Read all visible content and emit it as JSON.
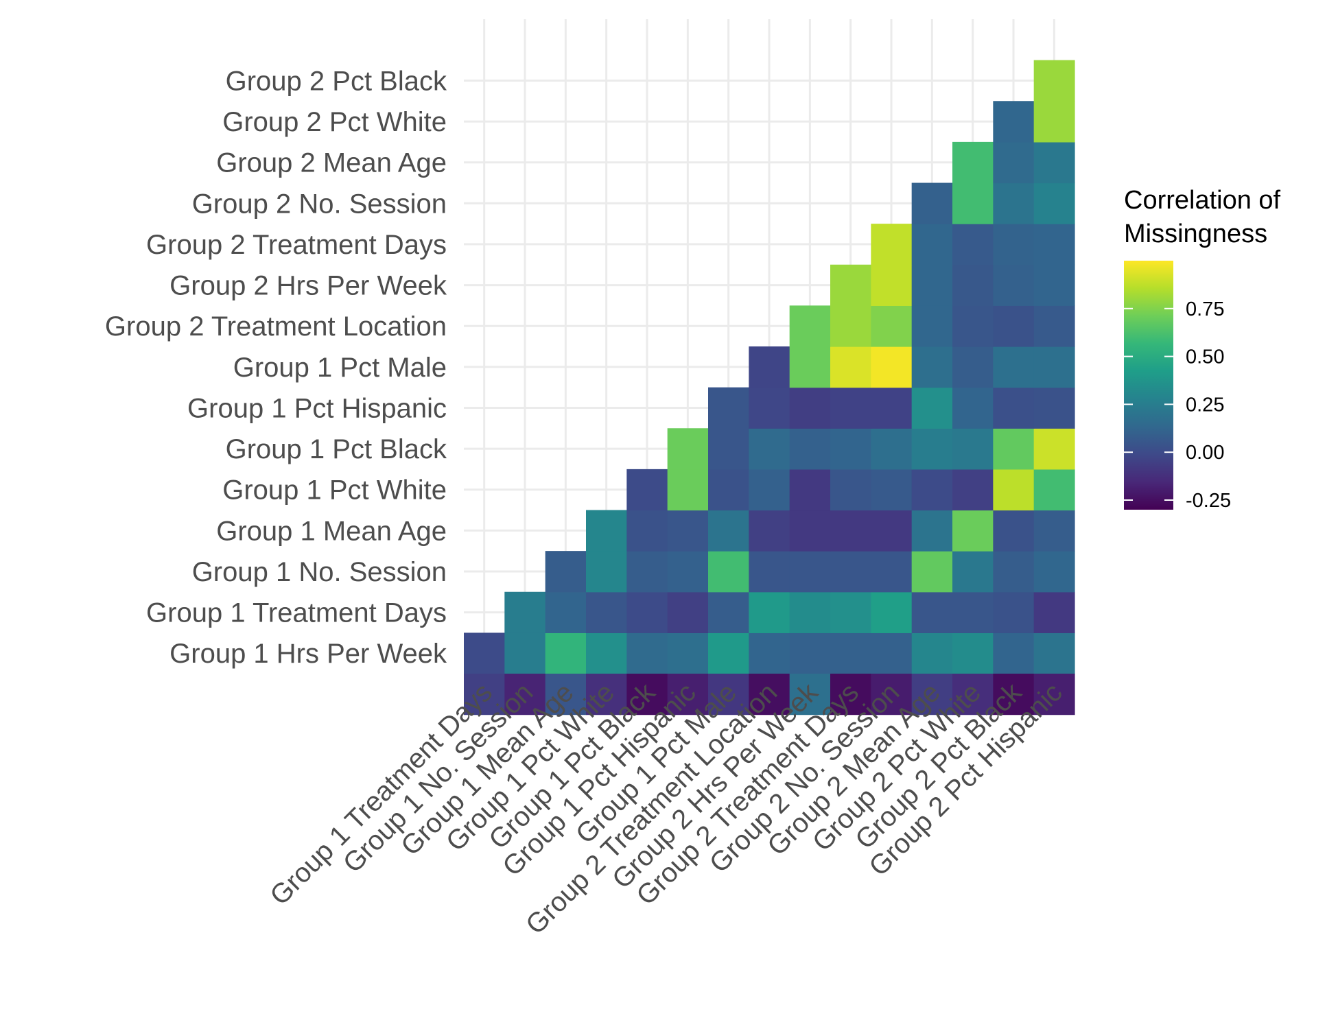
{
  "chart_data": {
    "type": "heatmap",
    "title": "",
    "xlabel": "",
    "ylabel": "",
    "x_categories": [
      "Group 1 Treatment Days",
      "Group 1 No. Session",
      "Group 1 Mean Age",
      "Group 1 Pct White",
      "Group 1 Pct Black",
      "Group 1 Pct Hispanic",
      "Group 1 Pct Male",
      "Group 2 Treatment Location",
      "Group 2 Hrs Per Week",
      "Group 2 Treatment Days",
      "Group 2 No. Session",
      "Group 2 Mean Age",
      "Group 2 Pct White",
      "Group 2 Pct Black",
      "Group 2 Pct Hispanic"
    ],
    "y_categories": [
      "Group 1 Hrs Per Week",
      "Group 1 Treatment Days",
      "Group 1 No. Session",
      "Group 1 Mean Age",
      "Group 1 Pct White",
      "Group 1 Pct Black",
      "Group 1 Pct Hispanic",
      "Group 1 Pct Male",
      "Group 2 Treatment Location",
      "Group 2 Hrs Per Week",
      "Group 2 Treatment Days",
      "Group 2 No. Session",
      "Group 2 Mean Age",
      "Group 2 Pct White",
      "Group 2 Pct Black"
    ],
    "bottom_row_values": [
      -0.05,
      -0.17,
      0.05,
      -0.12,
      -0.26,
      -0.19,
      -0.09,
      -0.25,
      0.18,
      -0.26,
      -0.2,
      -0.06,
      -0.13,
      -0.26,
      -0.19
    ],
    "values": [
      [
        0.0,
        0.25,
        0.55,
        0.35,
        0.15,
        0.17,
        0.4,
        0.12,
        0.1,
        0.1,
        0.1,
        0.3,
        0.33,
        0.12,
        0.2
      ],
      [
        null,
        0.25,
        0.12,
        0.05,
        0.0,
        -0.05,
        0.08,
        0.4,
        0.33,
        0.35,
        0.43,
        0.05,
        0.05,
        0.03,
        -0.08
      ],
      [
        null,
        null,
        0.08,
        0.3,
        0.08,
        0.1,
        0.6,
        0.05,
        0.05,
        0.05,
        0.05,
        0.68,
        0.22,
        0.08,
        0.13
      ],
      [
        null,
        null,
        null,
        0.3,
        0.03,
        0.05,
        0.2,
        -0.05,
        -0.08,
        -0.08,
        -0.08,
        0.2,
        0.7,
        0.03,
        0.08
      ],
      [
        null,
        null,
        null,
        null,
        0.0,
        0.7,
        0.03,
        0.1,
        -0.08,
        0.05,
        0.07,
        0.0,
        -0.05,
        0.87,
        0.6
      ],
      [
        null,
        null,
        null,
        null,
        null,
        0.7,
        0.05,
        0.15,
        0.1,
        0.12,
        0.17,
        0.25,
        0.23,
        0.68,
        0.9
      ],
      [
        null,
        null,
        null,
        null,
        null,
        null,
        0.05,
        -0.02,
        -0.06,
        -0.04,
        -0.04,
        0.35,
        0.12,
        0.02,
        0.03
      ],
      [
        null,
        null,
        null,
        null,
        null,
        null,
        null,
        -0.03,
        0.7,
        0.93,
        0.98,
        0.17,
        0.08,
        0.18,
        0.18
      ],
      [
        null,
        null,
        null,
        null,
        null,
        null,
        null,
        null,
        0.7,
        0.8,
        0.75,
        0.13,
        0.05,
        0.03,
        0.07
      ],
      [
        null,
        null,
        null,
        null,
        null,
        null,
        null,
        null,
        null,
        0.8,
        0.88,
        0.13,
        0.06,
        0.1,
        0.12
      ],
      [
        null,
        null,
        null,
        null,
        null,
        null,
        null,
        null,
        null,
        null,
        0.88,
        0.13,
        0.07,
        0.11,
        0.12
      ],
      [
        null,
        null,
        null,
        null,
        null,
        null,
        null,
        null,
        null,
        null,
        null,
        0.1,
        0.6,
        0.2,
        0.28
      ],
      [
        null,
        null,
        null,
        null,
        null,
        null,
        null,
        null,
        null,
        null,
        null,
        null,
        0.6,
        0.15,
        0.22
      ],
      [
        null,
        null,
        null,
        null,
        null,
        null,
        null,
        null,
        null,
        null,
        null,
        null,
        null,
        0.13,
        0.8
      ],
      [
        null,
        null,
        null,
        null,
        null,
        null,
        null,
        null,
        null,
        null,
        null,
        null,
        null,
        null,
        0.8
      ]
    ],
    "colorbar": {
      "title_line1": "Correlation of",
      "title_line2": "Missingness",
      "min": -0.3,
      "max": 1.0,
      "ticks": [
        0.75,
        0.5,
        0.25,
        0.0,
        -0.25
      ],
      "tick_labels": [
        "0.75",
        "0.50",
        "0.25",
        "0.00",
        "-0.25"
      ],
      "palette": "viridis"
    },
    "legend_position": "right",
    "grid": true
  }
}
